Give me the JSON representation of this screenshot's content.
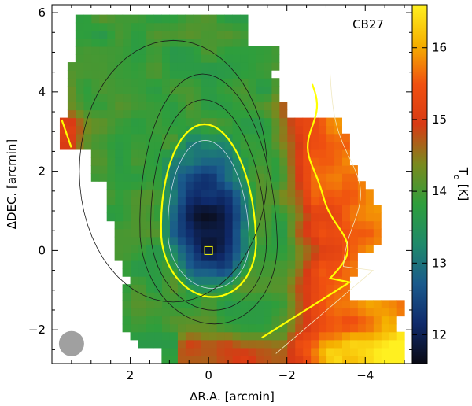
{
  "chart_data": {
    "type": "heatmap",
    "title": "CB27",
    "xlabel": "ΔR.A. [arcmin]",
    "ylabel": "ΔDEC. [arcmin]",
    "colorbar_label": "T_d [K]",
    "xlim": [
      4.0,
      -5.2
    ],
    "ylim": [
      -2.85,
      6.2
    ],
    "x_ticks": [
      2,
      0,
      -2,
      -4
    ],
    "x_tick_labels": [
      "2",
      "0",
      "−2",
      "−4"
    ],
    "y_ticks": [
      -2,
      0,
      2,
      4,
      6
    ],
    "y_tick_labels": [
      "−2",
      "0",
      "2",
      "4",
      "6"
    ],
    "colorbar_range": [
      11.6,
      16.6
    ],
    "colorbar_ticks": [
      12,
      13,
      14,
      15,
      16
    ],
    "colorbar_tick_labels": [
      "12",
      "13",
      "14",
      "15",
      "16"
    ],
    "colormap": [
      "#0a0a14",
      "#0f2a6b",
      "#1a5a8c",
      "#1f8a6a",
      "#2e9e3c",
      "#7a8a1e",
      "#d83a14",
      "#f05010",
      "#f5b000",
      "#fff020"
    ],
    "contour_highlight_color": "#ffff00",
    "beam_color": "#a0a0a0",
    "core": {
      "x": 0.0,
      "y": 0.0,
      "temperature_min": 11.7
    },
    "envelope_temperature": 13.9,
    "east_rim_temperature": 15.4,
    "reference_marker": {
      "x": 0.0,
      "y": 0.0,
      "shape": "square"
    },
    "beam": {
      "x": 3.5,
      "y": -2.35
    }
  }
}
